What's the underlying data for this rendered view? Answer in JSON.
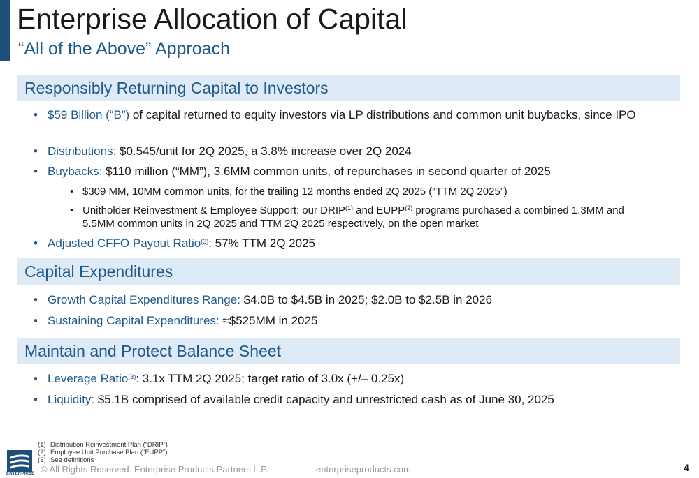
{
  "header": {
    "title": "Enterprise Allocation of Capital",
    "subtitle": "“All of the Above” Approach"
  },
  "sections": [
    {
      "title": "Responsibly Returning Capital to Investors",
      "bullets": [
        {
          "label": "$59 Billion (“B”)",
          "text": " of capital returned to equity investors via LP distributions and common unit buybacks, since IPO"
        },
        {
          "label": "Distributions:",
          "text": "  $0.545/unit for 2Q 2025, a 3.8% increase over 2Q 2024"
        },
        {
          "label": "Buybacks:",
          "text": "  $110 million (“MM”), 3.6MM common units, of repurchases in second quarter of 2025"
        },
        {
          "label": "Adjusted CFFO Payout Ratio",
          "sup": "(3)",
          "text": ":  57% TTM 2Q 2025"
        }
      ],
      "sub_bullets": [
        {
          "text": "$309 MM, 10MM common units, for the trailing 12 months ended 2Q 2025 (“TTM 2Q 2025”)"
        },
        {
          "text_a": "Unitholder Reinvestment & Employee Support:  our DRIP",
          "sup_a": "(1)",
          "text_b": " and EUPP",
          "sup_b": "(2)",
          "text_c": " programs purchased a combined 1.3MM and 5.5MM common units in 2Q 2025 and TTM 2Q 2025 respectively, on the open market"
        }
      ]
    },
    {
      "title": "Capital Expenditures",
      "bullets": [
        {
          "label": "Growth Capital Expenditures Range:",
          "text": "  $4.0B to $4.5B in 2025; $2.0B to $2.5B in 2026"
        },
        {
          "label": "Sustaining Capital Expenditures:",
          "text": "  ≈$525MM in 2025"
        }
      ]
    },
    {
      "title": "Maintain and Protect Balance Sheet",
      "bullets": [
        {
          "label": "Leverage Ratio",
          "sup": "(3)",
          "text": ":  3.1x TTM 2Q 2025; target ratio of 3.0x (+/– 0.25x)"
        },
        {
          "label": "Liquidity:",
          "text": "  $5.1B comprised of available credit capacity and unrestricted cash as of June 30, 2025"
        }
      ]
    }
  ],
  "footnotes": [
    {
      "num": "(1)",
      "text": "Distribution Reinvestment Plan (“DRIP”)"
    },
    {
      "num": "(2)",
      "text": "Employee Unit Purchase Plan (“EUPP”)"
    },
    {
      "num": "(3)",
      "text": "See definitions"
    }
  ],
  "footer": {
    "logo_text": "ENTERPRISE",
    "copyright": "© All Rights Reserved. Enterprise Products Partners L.P.",
    "website": "enterpriseproducts.com",
    "page_number": "4"
  },
  "colors": {
    "accent": "#1f4e79",
    "label_blue": "#1f5a8c",
    "section_bg": "#deebf6"
  }
}
